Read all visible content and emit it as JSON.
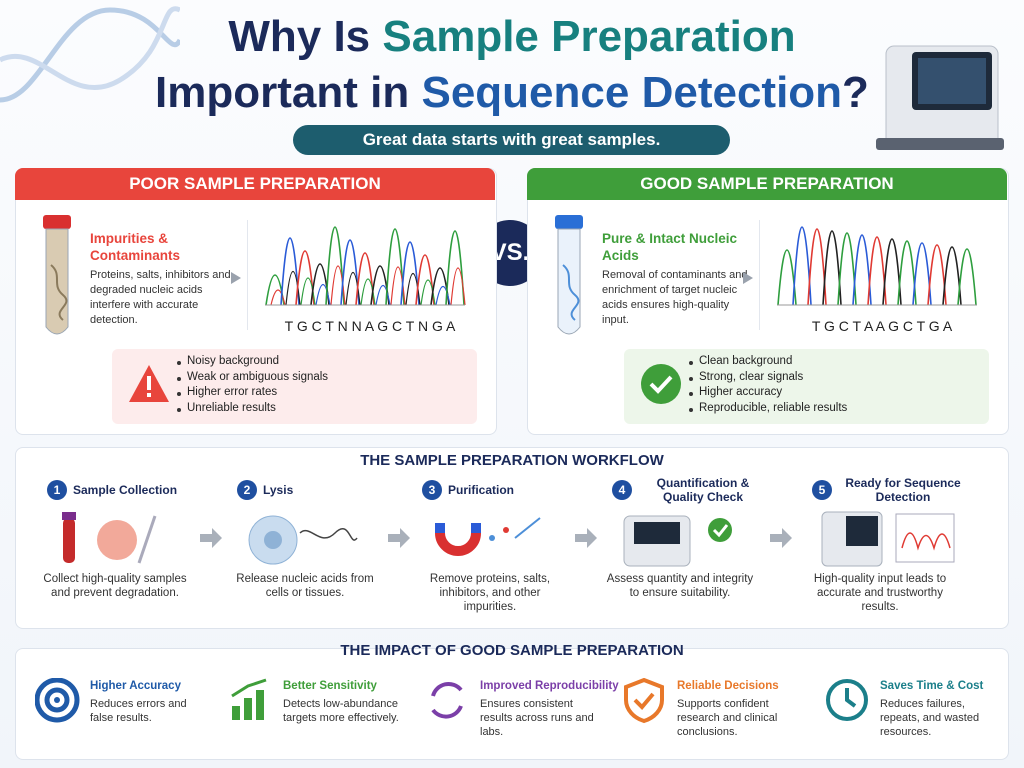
{
  "header": {
    "title_line1": [
      {
        "text": "Why Is ",
        "color": "#1b2a5a"
      },
      {
        "text": "Sample Preparation",
        "color": "#17807f"
      }
    ],
    "title_line2": [
      {
        "text": "Important in ",
        "color": "#1b2a5a"
      },
      {
        "text": "Sequence Detection",
        "color": "#1f5aa8"
      },
      {
        "text": "?",
        "color": "#1b2a5a"
      }
    ],
    "subtitle": "Great data starts with great samples."
  },
  "comparison": {
    "vs": "VS.",
    "panels": [
      {
        "header": "POOR SAMPLE PREPARATION",
        "color": "#e8453c",
        "tint": "#fdecec",
        "heading": "Impurities & Contaminants",
        "text": "Proteins, salts, inhibitors and degraded nucleic acids interfere with accurate detection.",
        "sequence": "T G C T N N A G C T N G A",
        "bullets": [
          "Noisy background",
          "Weak or ambiguous signals",
          "Higher error rates",
          "Unreliable results"
        ]
      },
      {
        "header": "GOOD SAMPLE PREPARATION",
        "color": "#3f9e3a",
        "tint": "#edf6ea",
        "heading": "Pure & Intact Nucleic Acids",
        "text": "Removal of contaminants and enrichment of target nucleic acids ensures high-quality input.",
        "sequence": "T G C T A A G C T G A",
        "bullets": [
          "Clean background",
          "Strong, clear signals",
          "Higher accuracy",
          "Reproducible, reliable results"
        ]
      }
    ]
  },
  "workflow": {
    "title": "THE SAMPLE PREPARATION WORKFLOW",
    "steps": [
      {
        "number": 1,
        "title": "Sample Collection",
        "text": "Collect high-quality samples and prevent degradation."
      },
      {
        "number": 2,
        "title": "Lysis",
        "text": "Release nucleic acids from cells or tissues."
      },
      {
        "number": 3,
        "title": "Purification",
        "text": "Remove proteins, salts, inhibitors, and other impurities."
      },
      {
        "number": 4,
        "title": "Quantification & Quality Check",
        "text": "Assess quantity and integrity to ensure suitability."
      },
      {
        "number": 5,
        "title": "Ready for Sequence Detection",
        "text": "High-quality input leads to accurate and trustworthy results."
      }
    ]
  },
  "impact": {
    "title": "THE IMPACT OF GOOD SAMPLE PREPARATION",
    "items": [
      {
        "title": "Higher Accuracy",
        "color": "#1f5aa8",
        "text": "Reduces errors and false results."
      },
      {
        "title": "Better Sensitivity",
        "color": "#3f9e3a",
        "text": "Detects low-abundance targets more effectively."
      },
      {
        "title": "Improved Reproducibility",
        "color": "#7b3fa8",
        "text": "Ensures consistent results across runs and labs."
      },
      {
        "title": "Reliable Decisions",
        "color": "#e8782a",
        "text": "Supports confident research and clinical conclusions."
      },
      {
        "title": "Saves Time & Cost",
        "color": "#1b7f8a",
        "text": "Reduces failures, repeats, and wasted resources."
      }
    ]
  }
}
